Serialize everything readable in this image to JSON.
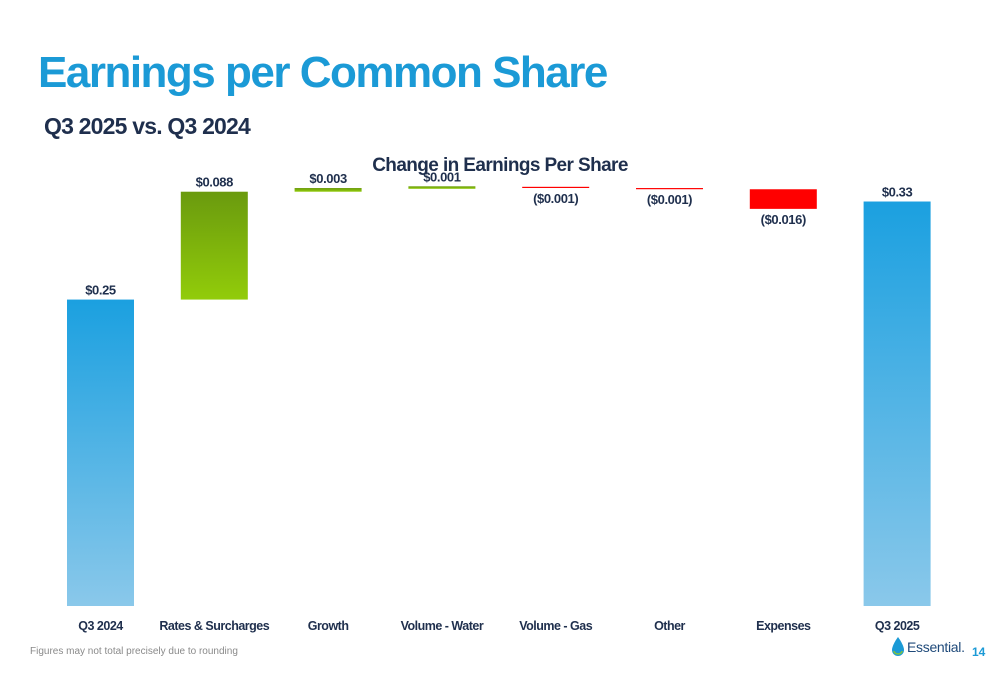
{
  "page": {
    "title": "Earnings per Common Share",
    "subtitle": "Q3 2025 vs. Q3 2024",
    "footnote": "Figures may not total precisely due to rounding",
    "page_number": "14",
    "logo_text": "Essential."
  },
  "colors": {
    "title": "#1b9ad6",
    "subtitle": "#1f2f4d",
    "total_top": "#1ba0e0",
    "total_bottom": "#8ac8ea",
    "increase_top": "#6a9a0e",
    "increase_bottom": "#92cc0a",
    "decrease": "#ff0000"
  },
  "chart_data": {
    "type": "bar",
    "subtype": "waterfall",
    "title": "Change in Earnings Per Share",
    "categories": [
      "Q3 2024",
      "Rates & Surcharges",
      "Growth",
      "Volume - Water",
      "Volume - Gas",
      "Other",
      "Expenses",
      "Q3 2025"
    ],
    "values": [
      0.25,
      0.088,
      0.003,
      0.001,
      -0.001,
      -0.001,
      -0.016,
      0.33
    ],
    "kinds": [
      "total",
      "increase",
      "increase",
      "increase",
      "decrease",
      "decrease",
      "decrease",
      "total"
    ],
    "data_labels": [
      "$0.25",
      "$0.088",
      "$0.003",
      "$0.001",
      "($0.001)",
      "($0.001)",
      "($0.016)",
      "$0.33"
    ],
    "ylim": [
      0,
      0.35
    ],
    "xlabel": "",
    "ylabel": "",
    "grid": false,
    "legend": "none"
  }
}
